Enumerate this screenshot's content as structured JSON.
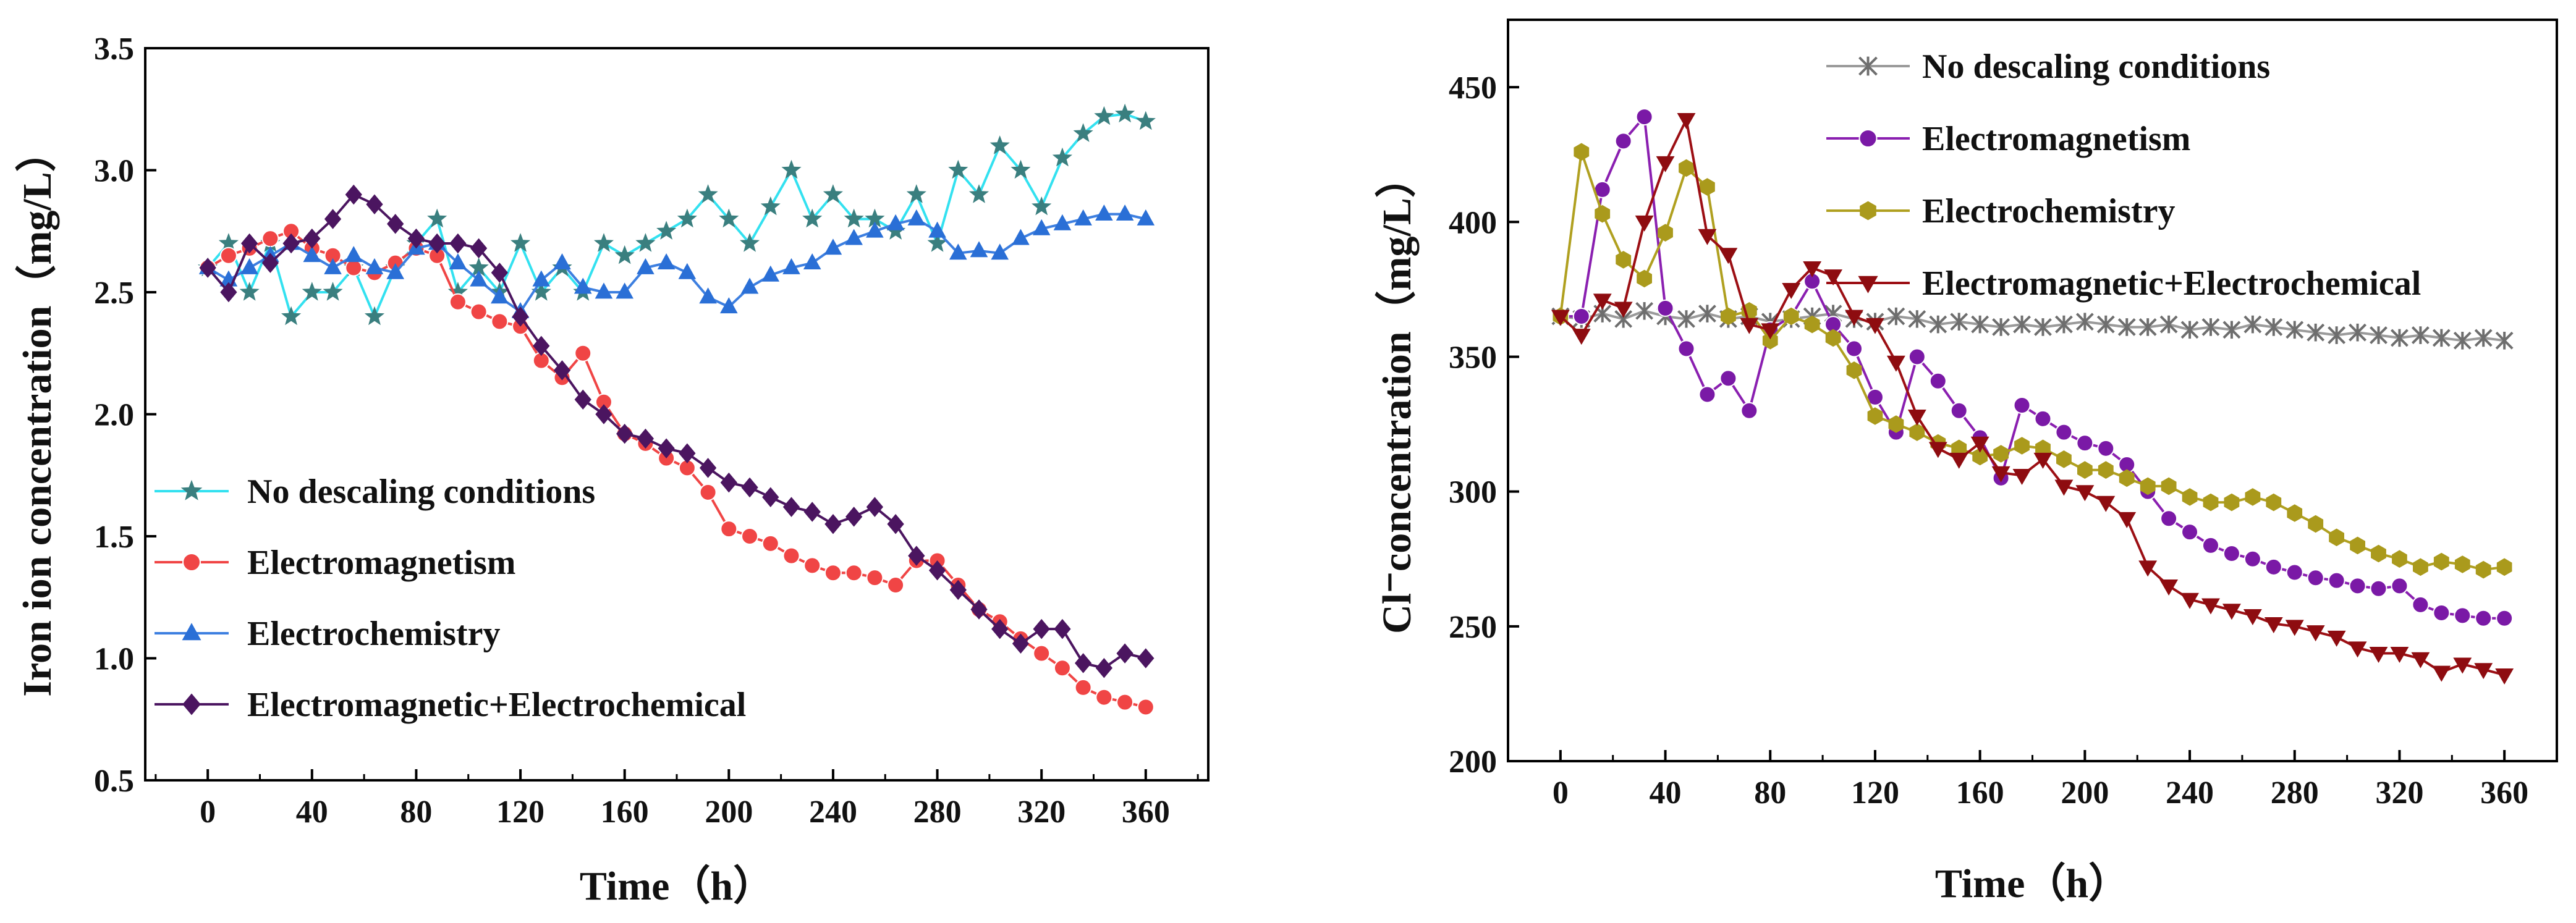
{
  "chart_data": [
    {
      "type": "line",
      "xlabel": "Time（h）",
      "ylabel": "Iron ion concentration（mg/L）",
      "xlim": [
        -24,
        384
      ],
      "ylim": [
        0.5,
        3.5
      ],
      "xticks": [
        0,
        40,
        80,
        120,
        160,
        200,
        240,
        280,
        320,
        360
      ],
      "yticks": [
        0.5,
        1.0,
        1.5,
        2.0,
        2.5,
        3.0,
        3.5
      ],
      "yformat": 1,
      "legend_position": "lower-left",
      "series": [
        {
          "name": "No descaling conditions",
          "color": "#33e1f0",
          "marker": "star",
          "marker_color": "#3a7f7f",
          "x": [
            0,
            8,
            16,
            24,
            32,
            40,
            48,
            56,
            64,
            72,
            80,
            88,
            96,
            104,
            112,
            120,
            128,
            136,
            144,
            152,
            160,
            168,
            176,
            184,
            192,
            200,
            208,
            216,
            224,
            232,
            240,
            248,
            256,
            264,
            272,
            280,
            288,
            296,
            304,
            312,
            320,
            328,
            336,
            344,
            352,
            360
          ],
          "values": [
            2.6,
            2.7,
            2.5,
            2.7,
            2.4,
            2.5,
            2.5,
            2.6,
            2.4,
            2.6,
            2.7,
            2.8,
            2.5,
            2.6,
            2.5,
            2.7,
            2.5,
            2.6,
            2.5,
            2.7,
            2.65,
            2.7,
            2.75,
            2.8,
            2.9,
            2.8,
            2.7,
            2.85,
            3.0,
            2.8,
            2.9,
            2.8,
            2.8,
            2.75,
            2.9,
            2.7,
            3.0,
            2.9,
            3.1,
            3.0,
            2.85,
            3.05,
            3.15,
            3.22,
            3.23,
            3.2
          ]
        },
        {
          "name": "Electromagnetism",
          "color": "#f04545",
          "marker": "circle",
          "marker_color": "#f04545",
          "x": [
            0,
            8,
            16,
            24,
            32,
            40,
            48,
            56,
            64,
            72,
            80,
            88,
            96,
            104,
            112,
            120,
            128,
            136,
            144,
            152,
            160,
            168,
            176,
            184,
            192,
            200,
            208,
            216,
            224,
            232,
            240,
            248,
            256,
            264,
            272,
            280,
            288,
            296,
            304,
            312,
            320,
            328,
            336,
            344,
            352,
            360
          ],
          "values": [
            2.6,
            2.65,
            2.68,
            2.72,
            2.75,
            2.68,
            2.65,
            2.6,
            2.58,
            2.62,
            2.68,
            2.65,
            2.46,
            2.42,
            2.38,
            2.36,
            2.22,
            2.15,
            2.25,
            2.05,
            1.92,
            1.88,
            1.82,
            1.78,
            1.68,
            1.53,
            1.5,
            1.47,
            1.42,
            1.38,
            1.35,
            1.35,
            1.33,
            1.3,
            1.4,
            1.4,
            1.3,
            1.2,
            1.15,
            1.08,
            1.02,
            0.96,
            0.88,
            0.84,
            0.82,
            0.8
          ]
        },
        {
          "name": "Electrochemistry",
          "color": "#3d7fe0",
          "marker": "triangle",
          "marker_color": "#2a6fd6",
          "x": [
            0,
            8,
            16,
            24,
            32,
            40,
            48,
            56,
            64,
            72,
            80,
            88,
            96,
            104,
            112,
            120,
            128,
            136,
            144,
            152,
            160,
            168,
            176,
            184,
            192,
            200,
            208,
            216,
            224,
            232,
            240,
            248,
            256,
            264,
            272,
            280,
            288,
            296,
            304,
            312,
            320,
            328,
            336,
            344,
            352,
            360
          ],
          "values": [
            2.6,
            2.55,
            2.6,
            2.65,
            2.7,
            2.65,
            2.6,
            2.65,
            2.6,
            2.58,
            2.68,
            2.7,
            2.62,
            2.55,
            2.48,
            2.42,
            2.55,
            2.62,
            2.52,
            2.5,
            2.5,
            2.6,
            2.62,
            2.58,
            2.48,
            2.44,
            2.52,
            2.57,
            2.6,
            2.62,
            2.68,
            2.72,
            2.75,
            2.78,
            2.8,
            2.75,
            2.66,
            2.67,
            2.66,
            2.72,
            2.76,
            2.78,
            2.8,
            2.82,
            2.82,
            2.8
          ]
        },
        {
          "name": "Electromagnetic+Electrochemical",
          "color": "#4b1560",
          "marker": "diamond",
          "marker_color": "#4b1560",
          "x": [
            0,
            8,
            16,
            24,
            32,
            40,
            48,
            56,
            64,
            72,
            80,
            88,
            96,
            104,
            112,
            120,
            128,
            136,
            144,
            152,
            160,
            168,
            176,
            184,
            192,
            200,
            208,
            216,
            224,
            232,
            240,
            248,
            256,
            264,
            272,
            280,
            288,
            296,
            304,
            312,
            320,
            328,
            336,
            344,
            352,
            360
          ],
          "values": [
            2.6,
            2.5,
            2.7,
            2.62,
            2.7,
            2.72,
            2.8,
            2.9,
            2.86,
            2.78,
            2.72,
            2.7,
            2.7,
            2.68,
            2.58,
            2.4,
            2.28,
            2.18,
            2.06,
            2.0,
            1.92,
            1.9,
            1.86,
            1.84,
            1.78,
            1.72,
            1.7,
            1.66,
            1.62,
            1.6,
            1.55,
            1.58,
            1.62,
            1.55,
            1.42,
            1.36,
            1.28,
            1.2,
            1.12,
            1.06,
            1.12,
            1.12,
            0.98,
            0.96,
            1.02,
            1.0
          ]
        }
      ]
    },
    {
      "type": "line",
      "xlabel": "Time（h）",
      "ylabel": "Cl⁻concentration（mg/L）",
      "xlim": [
        -20,
        380
      ],
      "ylim": [
        200,
        475
      ],
      "xticks": [
        0,
        40,
        80,
        120,
        160,
        200,
        240,
        280,
        320,
        360
      ],
      "yticks": [
        200,
        250,
        300,
        350,
        400,
        450
      ],
      "yformat": 0,
      "legend_position": "top-right",
      "series": [
        {
          "name": "No descaling conditions",
          "color": "#9a9a9a",
          "marker": "x",
          "marker_color": "#6e6e6e",
          "x": [
            0,
            8,
            16,
            24,
            32,
            40,
            48,
            56,
            64,
            72,
            80,
            88,
            96,
            104,
            112,
            120,
            128,
            136,
            144,
            152,
            160,
            168,
            176,
            184,
            192,
            200,
            208,
            216,
            224,
            232,
            240,
            248,
            256,
            264,
            272,
            280,
            288,
            296,
            304,
            312,
            320,
            328,
            336,
            344,
            352,
            360
          ],
          "values": [
            365,
            364,
            366,
            364,
            367,
            365,
            364,
            366,
            364,
            365,
            363,
            364,
            365,
            366,
            364,
            363,
            365,
            364,
            362,
            363,
            362,
            361,
            362,
            361,
            362,
            363,
            362,
            361,
            361,
            362,
            360,
            361,
            360,
            362,
            361,
            360,
            359,
            358,
            359,
            358,
            357,
            358,
            357,
            356,
            357,
            356
          ]
        },
        {
          "name": "Electromagnetism",
          "color": "#8a1fb0",
          "marker": "circle",
          "marker_color": "#7a19a6",
          "x": [
            0,
            8,
            16,
            24,
            32,
            40,
            48,
            56,
            64,
            72,
            80,
            88,
            96,
            104,
            112,
            120,
            128,
            136,
            144,
            152,
            160,
            168,
            176,
            184,
            192,
            200,
            208,
            216,
            224,
            232,
            240,
            248,
            256,
            264,
            272,
            280,
            288,
            296,
            304,
            312,
            320,
            328,
            336,
            344,
            352,
            360
          ],
          "values": [
            365,
            365,
            412,
            430,
            439,
            368,
            353,
            336,
            342,
            330,
            360,
            365,
            378,
            362,
            353,
            335,
            322,
            350,
            341,
            330,
            320,
            305,
            332,
            327,
            322,
            318,
            316,
            310,
            300,
            290,
            285,
            280,
            277,
            275,
            272,
            270,
            268,
            267,
            265,
            264,
            265,
            258,
            255,
            254,
            253,
            253
          ]
        },
        {
          "name": "Electrochemistry",
          "color": "#b0a020",
          "marker": "hexagon",
          "marker_color": "#aa9a1c",
          "x": [
            0,
            8,
            16,
            24,
            32,
            40,
            48,
            56,
            64,
            72,
            80,
            88,
            96,
            104,
            112,
            120,
            128,
            136,
            144,
            152,
            160,
            168,
            176,
            184,
            192,
            200,
            208,
            216,
            224,
            232,
            240,
            248,
            256,
            264,
            272,
            280,
            288,
            296,
            304,
            312,
            320,
            328,
            336,
            344,
            352,
            360
          ],
          "values": [
            365,
            426,
            403,
            386,
            379,
            396,
            420,
            413,
            365,
            367,
            356,
            365,
            362,
            357,
            345,
            328,
            325,
            322,
            318,
            316,
            313,
            314,
            317,
            316,
            312,
            308,
            308,
            305,
            302,
            302,
            298,
            296,
            296,
            298,
            296,
            292,
            288,
            283,
            280,
            277,
            275,
            272,
            274,
            273,
            271,
            272
          ]
        },
        {
          "name": "Electromagnetic+Electrochemical",
          "color": "#9c0f14",
          "marker": "triangle-down",
          "marker_color": "#8e0c10",
          "x": [
            0,
            8,
            16,
            24,
            32,
            40,
            48,
            56,
            64,
            72,
            80,
            88,
            96,
            104,
            112,
            120,
            128,
            136,
            144,
            152,
            160,
            168,
            176,
            184,
            192,
            200,
            208,
            216,
            224,
            232,
            240,
            248,
            256,
            264,
            272,
            280,
            288,
            296,
            304,
            312,
            320,
            328,
            336,
            344,
            352,
            360
          ],
          "values": [
            365,
            358,
            371,
            368,
            400,
            422,
            438,
            395,
            388,
            362,
            360,
            375,
            383,
            380,
            365,
            362,
            348,
            328,
            316,
            312,
            318,
            307,
            306,
            312,
            302,
            300,
            296,
            290,
            272,
            265,
            260,
            258,
            256,
            254,
            251,
            250,
            248,
            246,
            242,
            240,
            240,
            238,
            233,
            236,
            234,
            232
          ]
        }
      ]
    }
  ]
}
